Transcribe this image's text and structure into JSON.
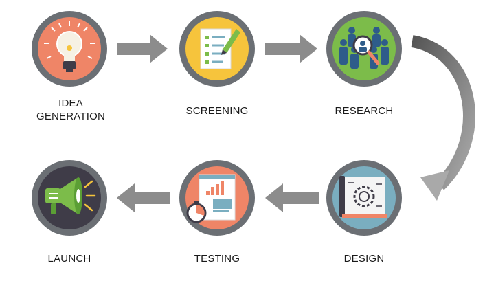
{
  "stages": [
    {
      "label": "IDEA",
      "label2": "GENERATION",
      "icon": "lightbulb-icon"
    },
    {
      "label": "SCREENING",
      "icon": "checklist-icon"
    },
    {
      "label": "RESEARCH",
      "icon": "magnifier-people-icon"
    },
    {
      "label": "DESIGN",
      "icon": "blueprint-gear-icon"
    },
    {
      "label": "TESTING",
      "icon": "stopwatch-chart-icon"
    },
    {
      "label": "LAUNCH",
      "icon": "megaphone-icon"
    }
  ],
  "colors": {
    "ring": "#6b6f74",
    "arrow": "#8c8c8c",
    "idea_fill": "#ef8567",
    "screening_fill": "#f6c43c",
    "research_fill": "#7cbc4a",
    "design_fill": "#7aaec0",
    "testing_fill": "#ef8567",
    "launch_fill": "#3f3c48"
  }
}
